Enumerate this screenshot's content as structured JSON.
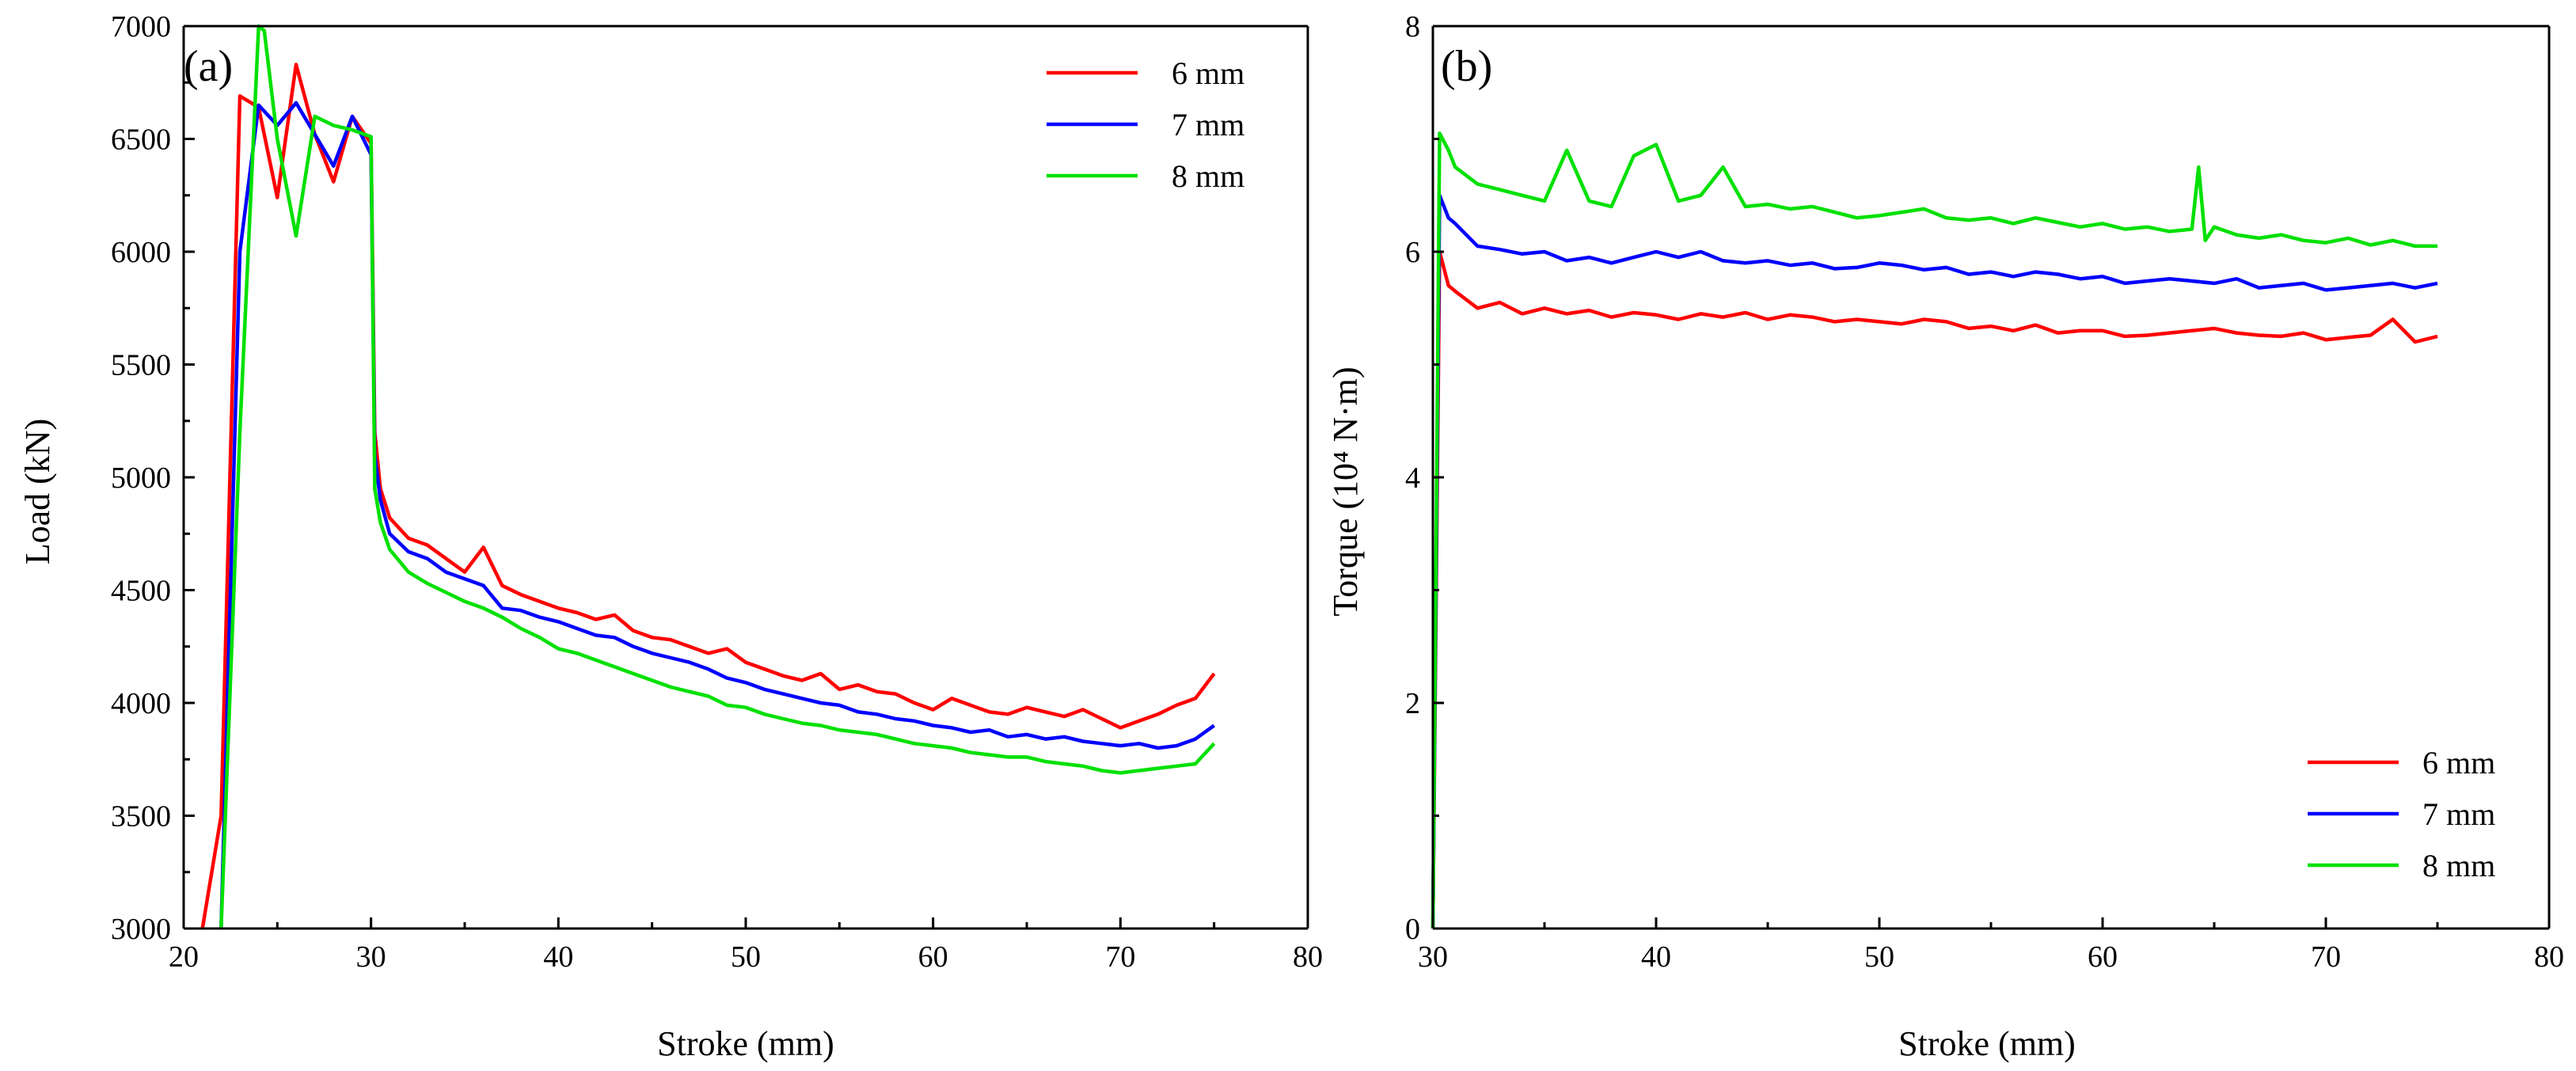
{
  "chart_data": [
    {
      "type": "line",
      "panel_label": "(a)",
      "xlabel": "Stroke (mm)",
      "ylabel": "Load (kN)",
      "xlim": [
        20,
        80
      ],
      "ylim": [
        3000,
        7000
      ],
      "xticks": [
        20,
        30,
        40,
        50,
        60,
        70,
        80
      ],
      "yticks": [
        3000,
        3500,
        4000,
        4500,
        5000,
        5500,
        6000,
        6500,
        7000
      ],
      "grid": false,
      "legend_position": "top-right",
      "series": [
        {
          "name": "6 mm",
          "color": "#ff0000",
          "x": [
            21,
            22,
            23,
            24,
            25,
            26,
            27,
            28,
            29,
            30,
            30.2,
            30.5,
            31,
            32,
            33,
            34,
            35,
            36,
            37,
            38,
            39,
            40,
            41,
            42,
            43,
            44,
            45,
            46,
            47,
            48,
            49,
            50,
            51,
            52,
            53,
            54,
            55,
            56,
            57,
            58,
            59,
            60,
            61,
            62,
            63,
            64,
            65,
            66,
            67,
            68,
            69,
            70,
            71,
            72,
            73,
            74,
            75
          ],
          "y": [
            3000,
            3500,
            6690,
            6640,
            6240,
            6830,
            6520,
            6310,
            6600,
            6480,
            5200,
            4950,
            4820,
            4730,
            4700,
            4640,
            4580,
            4690,
            4520,
            4480,
            4450,
            4420,
            4400,
            4370,
            4390,
            4320,
            4290,
            4280,
            4250,
            4220,
            4240,
            4180,
            4150,
            4120,
            4100,
            4130,
            4060,
            4080,
            4050,
            4040,
            4000,
            3970,
            4020,
            3990,
            3960,
            3950,
            3980,
            3960,
            3940,
            3970,
            3930,
            3890,
            3920,
            3950,
            3990,
            4020,
            4130
          ]
        },
        {
          "name": "7 mm",
          "color": "#0000ff",
          "x": [
            22,
            23,
            24,
            25,
            26,
            27,
            28,
            29,
            30,
            30.2,
            30.5,
            31,
            32,
            33,
            34,
            35,
            36,
            37,
            38,
            39,
            40,
            41,
            42,
            43,
            44,
            45,
            46,
            47,
            48,
            49,
            50,
            51,
            52,
            53,
            54,
            55,
            56,
            57,
            58,
            59,
            60,
            61,
            62,
            63,
            64,
            65,
            66,
            67,
            68,
            69,
            70,
            71,
            72,
            73,
            74,
            75
          ],
          "y": [
            3000,
            6000,
            6650,
            6560,
            6660,
            6520,
            6380,
            6600,
            6430,
            5100,
            4900,
            4750,
            4670,
            4640,
            4580,
            4550,
            4520,
            4420,
            4410,
            4380,
            4360,
            4330,
            4300,
            4290,
            4250,
            4220,
            4200,
            4180,
            4150,
            4110,
            4090,
            4060,
            4040,
            4020,
            4000,
            3990,
            3960,
            3950,
            3930,
            3920,
            3900,
            3890,
            3870,
            3880,
            3850,
            3860,
            3840,
            3850,
            3830,
            3820,
            3810,
            3820,
            3800,
            3810,
            3840,
            3900
          ]
        },
        {
          "name": "8 mm",
          "color": "#00e000",
          "x": [
            22,
            23,
            24,
            24.3,
            25,
            26,
            27,
            28,
            29,
            30,
            30.2,
            30.5,
            31,
            32,
            33,
            34,
            35,
            36,
            37,
            38,
            39,
            40,
            41,
            42,
            43,
            44,
            45,
            46,
            47,
            48,
            49,
            50,
            51,
            52,
            53,
            54,
            55,
            56,
            57,
            58,
            59,
            60,
            61,
            62,
            63,
            64,
            65,
            66,
            67,
            68,
            69,
            70,
            71,
            72,
            73,
            74,
            75
          ],
          "y": [
            3000,
            5200,
            7000,
            6980,
            6500,
            6070,
            6600,
            6560,
            6540,
            6510,
            4950,
            4800,
            4680,
            4580,
            4530,
            4490,
            4450,
            4420,
            4380,
            4330,
            4290,
            4240,
            4220,
            4190,
            4160,
            4130,
            4100,
            4070,
            4050,
            4030,
            3990,
            3980,
            3950,
            3930,
            3910,
            3900,
            3880,
            3870,
            3860,
            3840,
            3820,
            3810,
            3800,
            3780,
            3770,
            3760,
            3760,
            3740,
            3730,
            3720,
            3700,
            3690,
            3700,
            3710,
            3720,
            3730,
            3820
          ]
        }
      ]
    },
    {
      "type": "line",
      "panel_label": "(b)",
      "xlabel": "Stroke (mm)",
      "ylabel": "Torque (10⁴ N·m)",
      "xlim": [
        30,
        80
      ],
      "ylim": [
        0,
        8
      ],
      "xticks": [
        30,
        40,
        50,
        60,
        70,
        80
      ],
      "yticks": [
        0,
        2,
        4,
        6,
        8
      ],
      "grid": false,
      "legend_position": "bottom-right",
      "series": [
        {
          "name": "6 mm",
          "color": "#ff0000",
          "x": [
            30,
            30.3,
            30.7,
            31,
            32,
            33,
            34,
            35,
            36,
            37,
            38,
            39,
            40,
            41,
            42,
            43,
            44,
            45,
            46,
            47,
            48,
            49,
            50,
            51,
            52,
            53,
            54,
            55,
            56,
            57,
            58,
            59,
            60,
            61,
            62,
            63,
            64,
            65,
            66,
            67,
            68,
            69,
            70,
            71,
            72,
            73,
            74,
            75
          ],
          "y": [
            0,
            6.0,
            5.7,
            5.65,
            5.5,
            5.55,
            5.45,
            5.5,
            5.45,
            5.48,
            5.42,
            5.46,
            5.44,
            5.4,
            5.45,
            5.42,
            5.46,
            5.4,
            5.44,
            5.42,
            5.38,
            5.4,
            5.38,
            5.36,
            5.4,
            5.38,
            5.32,
            5.34,
            5.3,
            5.35,
            5.28,
            5.3,
            5.3,
            5.25,
            5.26,
            5.28,
            5.3,
            5.32,
            5.28,
            5.26,
            5.25,
            5.28,
            5.22,
            5.24,
            5.26,
            5.4,
            5.2,
            5.25
          ]
        },
        {
          "name": "7 mm",
          "color": "#0000ff",
          "x": [
            30,
            30.3,
            30.7,
            31,
            32,
            33,
            34,
            35,
            36,
            37,
            38,
            39,
            40,
            41,
            42,
            43,
            44,
            45,
            46,
            47,
            48,
            49,
            50,
            51,
            52,
            53,
            54,
            55,
            56,
            57,
            58,
            59,
            60,
            61,
            62,
            63,
            64,
            65,
            66,
            67,
            68,
            69,
            70,
            71,
            72,
            73,
            74,
            75
          ],
          "y": [
            0,
            6.5,
            6.3,
            6.25,
            6.05,
            6.02,
            5.98,
            6.0,
            5.92,
            5.95,
            5.9,
            5.95,
            6.0,
            5.95,
            6.0,
            5.92,
            5.9,
            5.92,
            5.88,
            5.9,
            5.85,
            5.86,
            5.9,
            5.88,
            5.84,
            5.86,
            5.8,
            5.82,
            5.78,
            5.82,
            5.8,
            5.76,
            5.78,
            5.72,
            5.74,
            5.76,
            5.74,
            5.72,
            5.76,
            5.68,
            5.7,
            5.72,
            5.66,
            5.68,
            5.7,
            5.72,
            5.68,
            5.72
          ]
        },
        {
          "name": "8 mm",
          "color": "#00e000",
          "x": [
            30,
            30.3,
            30.7,
            31,
            32,
            33,
            34,
            35,
            36,
            37,
            38,
            39,
            40,
            41,
            42,
            43,
            44,
            45,
            46,
            47,
            48,
            49,
            50,
            51,
            52,
            53,
            54,
            55,
            56,
            57,
            58,
            59,
            60,
            61,
            62,
            63,
            64,
            64.3,
            64.6,
            65,
            66,
            67,
            68,
            69,
            70,
            71,
            72,
            73,
            74,
            75
          ],
          "y": [
            0,
            7.05,
            6.9,
            6.75,
            6.6,
            6.55,
            6.5,
            6.45,
            6.9,
            6.45,
            6.4,
            6.85,
            6.95,
            6.45,
            6.5,
            6.75,
            6.4,
            6.42,
            6.38,
            6.4,
            6.35,
            6.3,
            6.32,
            6.35,
            6.38,
            6.3,
            6.28,
            6.3,
            6.25,
            6.3,
            6.26,
            6.22,
            6.25,
            6.2,
            6.22,
            6.18,
            6.2,
            6.75,
            6.1,
            6.22,
            6.15,
            6.12,
            6.15,
            6.1,
            6.08,
            6.12,
            6.06,
            6.1,
            6.05,
            6.05
          ]
        }
      ]
    }
  ]
}
